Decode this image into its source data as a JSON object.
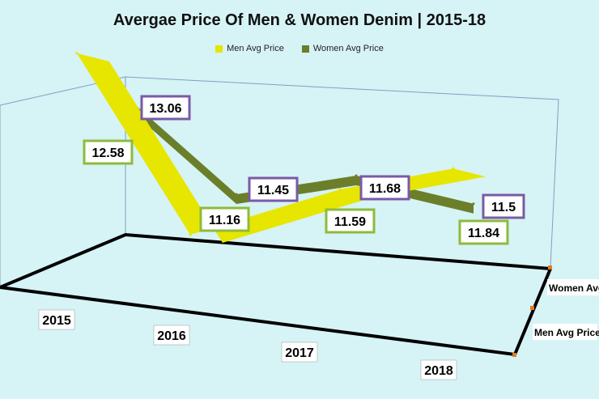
{
  "chart_data": {
    "type": "line",
    "title": "Avergae Price Of Men & Women Denim | 2015-18",
    "categories": [
      "2015",
      "2016",
      "2017",
      "2018"
    ],
    "series": [
      {
        "name": "Men Avg Price",
        "values": [
          12.58,
          11.16,
          11.59,
          11.84
        ],
        "labels": [
          "12.58",
          "11.16",
          "11.59",
          "11.84"
        ],
        "color": "#e6e600",
        "label_border": "#8dbb3c"
      },
      {
        "name": "Women Avg Price",
        "values": [
          13.06,
          11.45,
          11.68,
          11.5
        ],
        "labels": [
          "13.06",
          "11.45",
          "11.68",
          "11.5"
        ],
        "color": "#6b7f2a",
        "label_border": "#7a5aa5"
      }
    ],
    "depth_labels": [
      "Women Avg Price",
      "Men Avg Price"
    ],
    "legend_position": "top",
    "grid": false
  }
}
